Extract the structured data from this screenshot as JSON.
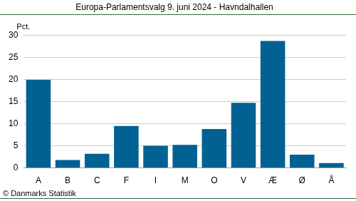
{
  "chart_data": {
    "type": "bar",
    "title": "Europa-Parlamentsvalg 9. juni 2024 - Havndalhallen",
    "ylabel": "Pct.",
    "source": "© Danmarks Statistik",
    "categories": [
      "A",
      "B",
      "C",
      "F",
      "I",
      "M",
      "O",
      "V",
      "Æ",
      "Ø",
      "Å"
    ],
    "values": [
      19.9,
      1.8,
      3.2,
      9.5,
      5.0,
      5.2,
      8.8,
      14.7,
      28.7,
      3.0,
      1.1
    ],
    "color": "#006192",
    "ylim": [
      0,
      30
    ],
    "yticks": [
      0,
      5,
      10,
      15,
      20,
      25,
      30
    ],
    "grid": true
  }
}
